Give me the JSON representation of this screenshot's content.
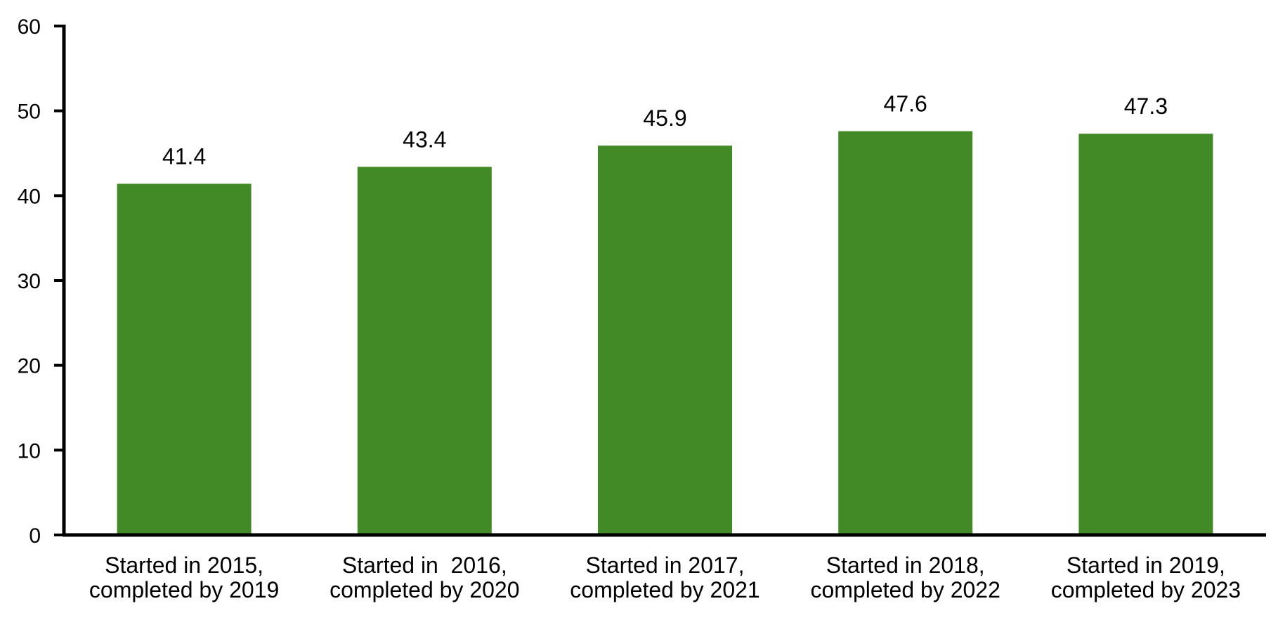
{
  "chart_data": {
    "type": "bar",
    "title": "",
    "xlabel": "",
    "ylabel": "",
    "categories": [
      [
        "Started in 2015,",
        "completed by 2019"
      ],
      [
        "Started in  2016,",
        "completed by 2020"
      ],
      [
        "Started in 2017,",
        "completed by 2021"
      ],
      [
        "Started in 2018,",
        "completed by 2022"
      ],
      [
        "Started in 2019,",
        "completed by 2023"
      ]
    ],
    "values": [
      41.4,
      43.4,
      45.9,
      47.6,
      47.3
    ],
    "value_labels": [
      "41.4",
      "43.4",
      "45.9",
      "47.6",
      "47.3"
    ],
    "ylim": [
      0,
      60
    ],
    "yticks": [
      0,
      10,
      20,
      30,
      40,
      50,
      60
    ],
    "ytick_labels": [
      "0",
      "10",
      "20",
      "30",
      "40",
      "50",
      "60"
    ],
    "grid": false,
    "legend": "none",
    "colors": {
      "bar": "#428a26",
      "axis": "#000000"
    }
  }
}
